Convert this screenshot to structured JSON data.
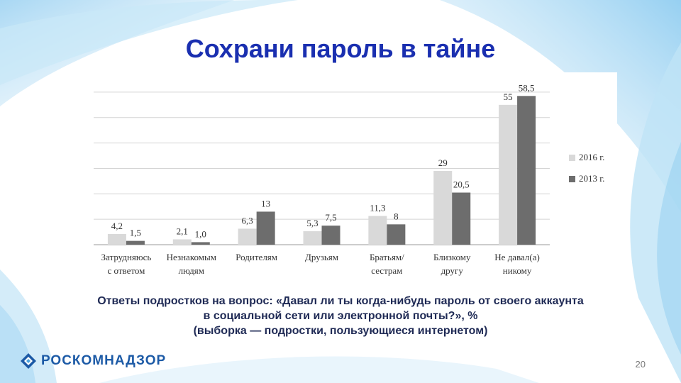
{
  "slide": {
    "title": "Сохрани пароль в тайне",
    "caption_lines": [
      "Ответы подростков на вопрос: «Давал ли ты когда-нибудь пароль от своего аккаунта",
      "в социальной сети или электронной почты?», %",
      "(выборка — подростки, пользующиеся интернетом)"
    ],
    "logo_text": "РОСКОМНАДЗОР",
    "page_number": "20"
  },
  "colors": {
    "title": "#1a2fb0",
    "series_2016": "#d9d9d9",
    "series_2013": "#6d6d6d",
    "accent_blue": "#1c5aa6"
  },
  "chart_data": {
    "type": "bar",
    "categories": [
      [
        "Затрудняюсь",
        "с ответом"
      ],
      [
        "Незнакомым",
        "людям"
      ],
      [
        "Родителям"
      ],
      [
        "Друзьям"
      ],
      [
        "Братьям/",
        "сестрам"
      ],
      [
        "Близкому",
        "другу"
      ],
      [
        "Не давал(а)",
        "никому"
      ]
    ],
    "series": [
      {
        "name": "2016 г.",
        "values": [
          4.2,
          2.1,
          6.3,
          5.3,
          11.3,
          29,
          55
        ],
        "labels": [
          "4,2",
          "2,1",
          "6,3",
          "5,3",
          "11,3",
          "29",
          "55"
        ]
      },
      {
        "name": "2013 г.",
        "values": [
          1.5,
          1.0,
          13,
          7.5,
          8,
          20.5,
          58.5
        ],
        "labels": [
          "1,5",
          "1,0",
          "13",
          "7,5",
          "8",
          "20,5",
          "58,5"
        ]
      }
    ],
    "ylim": [
      0,
      65
    ],
    "grid": true,
    "legend_position": "right"
  }
}
